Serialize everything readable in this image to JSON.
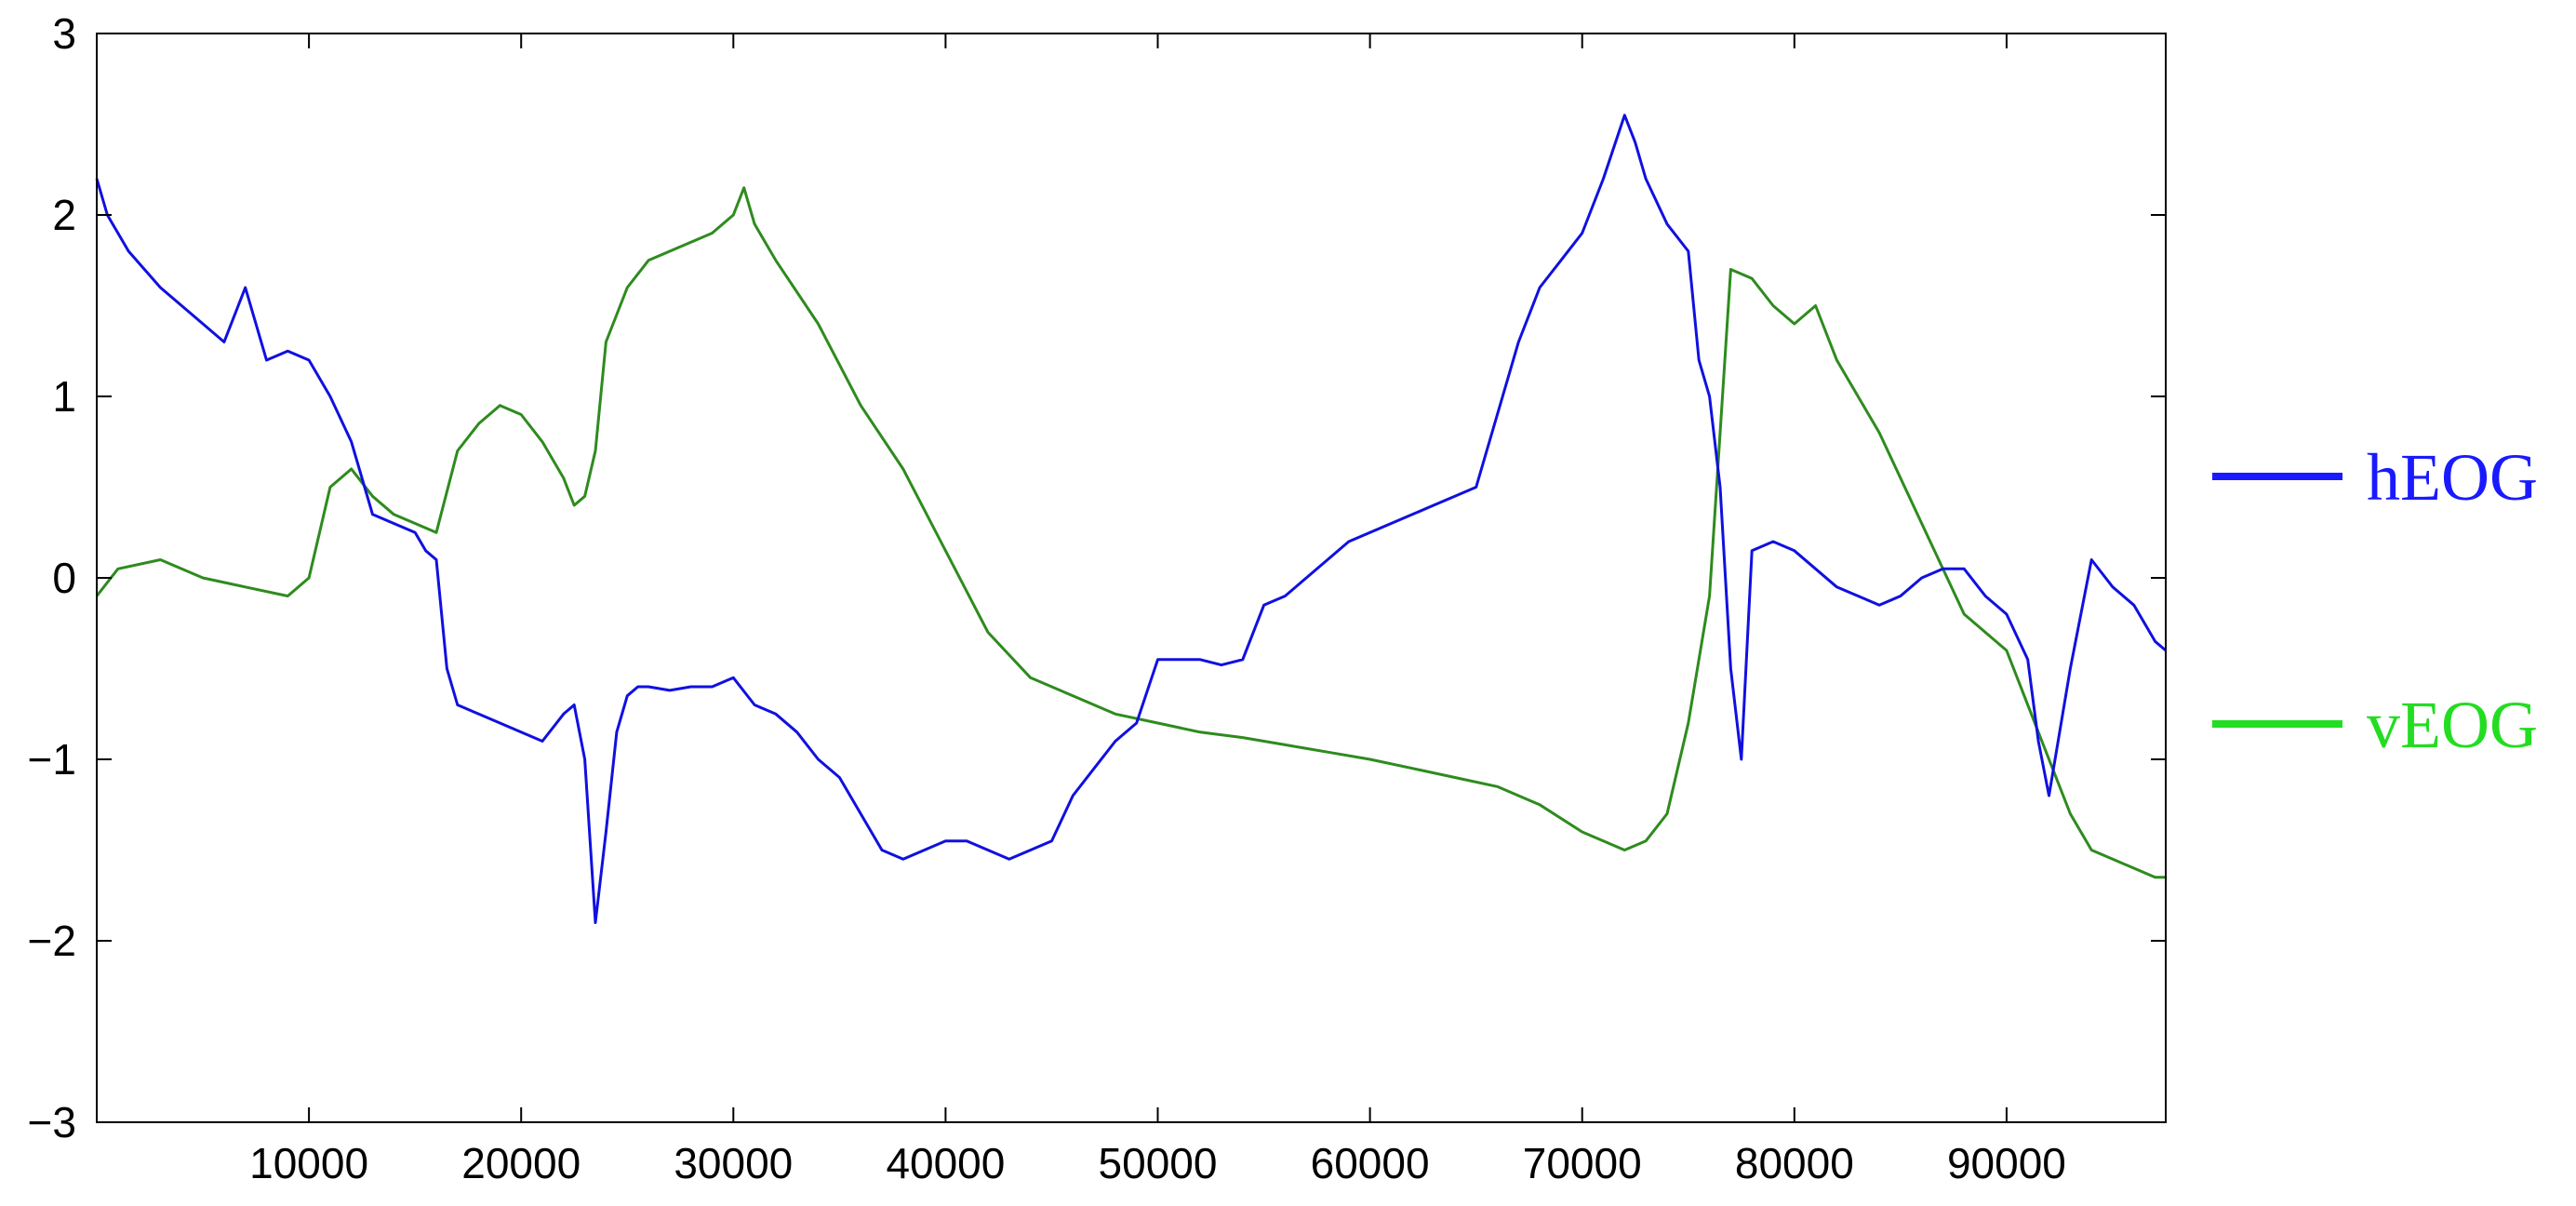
{
  "chart_data": {
    "type": "line",
    "title": "",
    "xlabel": "",
    "ylabel": "",
    "xlim": [
      0,
      97500
    ],
    "ylim": [
      -3,
      3
    ],
    "grid": false,
    "legend_position": "right",
    "x_ticks": [
      10000,
      20000,
      30000,
      40000,
      50000,
      60000,
      70000,
      80000,
      90000
    ],
    "x_tick_labels": [
      "10000",
      "20000",
      "30000",
      "40000",
      "50000",
      "60000",
      "70000",
      "80000",
      "90000"
    ],
    "y_ticks": [
      -3,
      -2,
      -1,
      0,
      1,
      2,
      3
    ],
    "y_tick_labels": [
      "−3",
      "−2",
      "−1",
      "0",
      "1",
      "2",
      "3"
    ],
    "series": [
      {
        "name": "hEOG",
        "color": "#1010e0",
        "legend_color": "#1a1aff",
        "x": [
          0,
          500,
          1500,
          3000,
          5000,
          6000,
          7000,
          8000,
          9000,
          10000,
          11000,
          12000,
          13000,
          14000,
          15000,
          15500,
          16000,
          16500,
          17000,
          18000,
          19000,
          20000,
          21000,
          22000,
          22500,
          23000,
          23500,
          24000,
          24500,
          25000,
          25500,
          26000,
          27000,
          28000,
          29000,
          30000,
          31000,
          32000,
          33000,
          34000,
          35000,
          36000,
          37000,
          38000,
          39000,
          40000,
          41000,
          42000,
          43000,
          44000,
          45000,
          46000,
          47000,
          48000,
          49000,
          50000,
          51000,
          52000,
          53000,
          54000,
          55000,
          56000,
          57000,
          58000,
          59000,
          60000,
          61000,
          62000,
          63000,
          64000,
          65000,
          66000,
          67000,
          68000,
          69000,
          70000,
          71000,
          72000,
          72500,
          73000,
          74000,
          75000,
          75500,
          76000,
          76500,
          77000,
          77500,
          78000,
          79000,
          80000,
          81000,
          82000,
          83000,
          84000,
          85000,
          86000,
          87000,
          88000,
          89000,
          90000,
          91000,
          91500,
          92000,
          93000,
          94000,
          95000,
          96000,
          97000,
          97500
        ],
        "y": [
          2.2,
          2.0,
          1.8,
          1.6,
          1.4,
          1.3,
          1.6,
          1.2,
          1.25,
          1.2,
          1.0,
          0.75,
          0.35,
          0.3,
          0.25,
          0.15,
          0.1,
          -0.5,
          -0.7,
          -0.75,
          -0.8,
          -0.85,
          -0.9,
          -0.75,
          -0.7,
          -1.0,
          -1.9,
          -1.4,
          -0.85,
          -0.65,
          -0.6,
          -0.6,
          -0.62,
          -0.6,
          -0.6,
          -0.55,
          -0.7,
          -0.75,
          -0.85,
          -1.0,
          -1.1,
          -1.3,
          -1.5,
          -1.55,
          -1.5,
          -1.45,
          -1.45,
          -1.5,
          -1.55,
          -1.5,
          -1.45,
          -1.2,
          -1.05,
          -0.9,
          -0.8,
          -0.45,
          -0.45,
          -0.45,
          -0.48,
          -0.45,
          -0.15,
          -0.1,
          0.0,
          0.1,
          0.2,
          0.25,
          0.3,
          0.35,
          0.4,
          0.45,
          0.5,
          0.9,
          1.3,
          1.6,
          1.75,
          1.9,
          2.2,
          2.55,
          2.4,
          2.2,
          1.95,
          1.8,
          1.2,
          1.0,
          0.5,
          -0.5,
          -1.0,
          0.15,
          0.2,
          0.15,
          0.05,
          -0.05,
          -0.1,
          -0.15,
          -0.1,
          0.0,
          0.05,
          0.05,
          -0.1,
          -0.2,
          -0.45,
          -0.9,
          -1.2,
          -0.5,
          0.1,
          -0.05,
          -0.15,
          -0.35,
          -0.4
        ]
      },
      {
        "name": "vEOG",
        "color": "#2e8b1e",
        "legend_color": "#22dd22",
        "x": [
          0,
          1000,
          3000,
          5000,
          7000,
          9000,
          10000,
          11000,
          12000,
          13000,
          14000,
          15000,
          16000,
          17000,
          18000,
          19000,
          20000,
          21000,
          22000,
          22500,
          23000,
          23500,
          24000,
          25000,
          26000,
          27000,
          28000,
          29000,
          30000,
          30500,
          31000,
          32000,
          34000,
          36000,
          38000,
          40000,
          42000,
          44000,
          46000,
          48000,
          50000,
          52000,
          54000,
          56000,
          58000,
          60000,
          62000,
          64000,
          66000,
          68000,
          70000,
          72000,
          73000,
          74000,
          75000,
          76000,
          77000,
          78000,
          79000,
          80000,
          81000,
          82000,
          84000,
          86000,
          88000,
          90000,
          92000,
          93000,
          94000,
          95000,
          96000,
          97000,
          97500
        ],
        "y": [
          -0.1,
          0.05,
          0.1,
          0.0,
          -0.05,
          -0.1,
          0.0,
          0.5,
          0.6,
          0.45,
          0.35,
          0.3,
          0.25,
          0.7,
          0.85,
          0.95,
          0.9,
          0.75,
          0.55,
          0.4,
          0.45,
          0.7,
          1.3,
          1.6,
          1.75,
          1.8,
          1.85,
          1.9,
          2.0,
          2.15,
          1.95,
          1.75,
          1.4,
          0.95,
          0.6,
          0.15,
          -0.3,
          -0.55,
          -0.65,
          -0.75,
          -0.8,
          -0.85,
          -0.88,
          -0.92,
          -0.96,
          -1.0,
          -1.05,
          -1.1,
          -1.15,
          -1.25,
          -1.4,
          -1.5,
          -1.45,
          -1.3,
          -0.8,
          -0.1,
          1.7,
          1.65,
          1.5,
          1.4,
          1.5,
          1.2,
          0.8,
          0.3,
          -0.2,
          -0.4,
          -1.0,
          -1.3,
          -1.5,
          -1.55,
          -1.6,
          -1.65,
          -1.65
        ]
      }
    ]
  }
}
